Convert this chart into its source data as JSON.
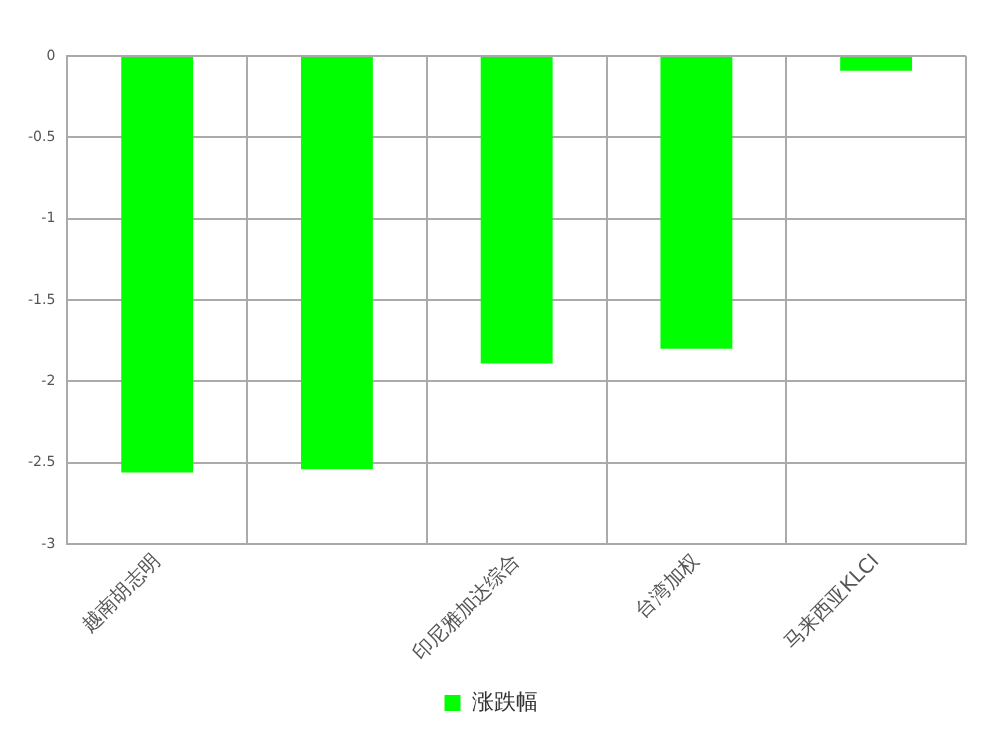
{
  "chart_data": {
    "type": "bar",
    "categories": [
      "越南胡志明",
      null,
      "印尼雅加达综合",
      "台湾加权",
      "马来西亚KLCI"
    ],
    "series": [
      {
        "name": "涨跌幅",
        "color": "#00ff00",
        "values": [
          -2.56,
          -2.54,
          -1.89,
          -1.8,
          -0.09
        ]
      }
    ],
    "ylim": [
      -3,
      0
    ],
    "yticks": [
      0,
      -0.5,
      -1,
      -1.5,
      -2,
      -2.5,
      -3
    ],
    "grid": true,
    "legend": "bottom"
  }
}
